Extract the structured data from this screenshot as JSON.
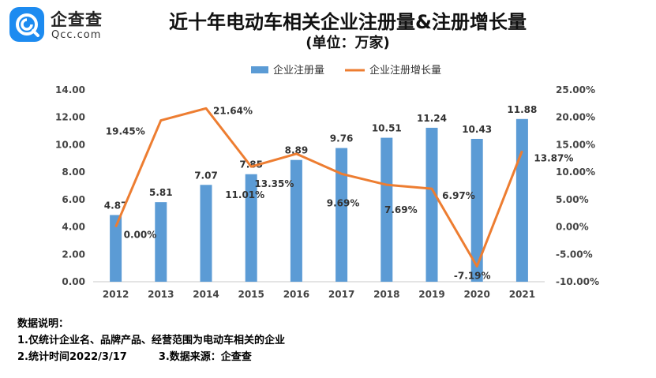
{
  "logo": {
    "name": "企查查",
    "domain": "Qcc.com"
  },
  "chart_data": {
    "type": "bar",
    "title": "近十年电动车相关企业注册量&注册增长量",
    "subtitle": "(单位：万家)",
    "categories": [
      "2012",
      "2013",
      "2014",
      "2015",
      "2016",
      "2017",
      "2018",
      "2019",
      "2020",
      "2021"
    ],
    "series": [
      {
        "name": "企业注册量",
        "type": "bar",
        "axis": "left",
        "color": "#5b9bd5",
        "values": [
          4.87,
          5.81,
          7.07,
          7.85,
          8.89,
          9.76,
          10.51,
          11.24,
          10.43,
          11.88
        ],
        "labels": [
          "4.87",
          "5.81",
          "7.07",
          "7.85",
          "8.89",
          "9.76",
          "10.51",
          "11.24",
          "10.43",
          "11.88"
        ]
      },
      {
        "name": "企业注册增长量",
        "type": "line",
        "axis": "right",
        "color": "#ed7d31",
        "values": [
          0.0,
          19.45,
          21.64,
          11.01,
          13.35,
          9.69,
          7.69,
          6.97,
          -7.19,
          13.87
        ],
        "labels": [
          "0.00%",
          "19.45%",
          "21.64%",
          "11.01%",
          "13.35%",
          "9.69%",
          "7.69%",
          "6.97%",
          "-7.19%",
          "13.87%"
        ]
      }
    ],
    "y_left": {
      "ylim": [
        0,
        14
      ],
      "ticks": [
        "0.00",
        "2.00",
        "4.00",
        "6.00",
        "8.00",
        "10.00",
        "12.00",
        "14.00"
      ]
    },
    "y_right": {
      "ylim": [
        -10,
        25
      ],
      "ticks": [
        "-10.00%",
        "-5.00%",
        "0.00%",
        "5.00%",
        "10.00%",
        "15.00%",
        "20.00%",
        "25.00%"
      ]
    },
    "legend_position": "top-center",
    "grid": false
  },
  "notes": {
    "heading": "数据说明：",
    "line1": "1.仅统计企业名、品牌产品、经营范围为电动车相关的企业",
    "line2": "2.统计时间2022/3/17",
    "line3": "3.数据来源：企查查"
  }
}
